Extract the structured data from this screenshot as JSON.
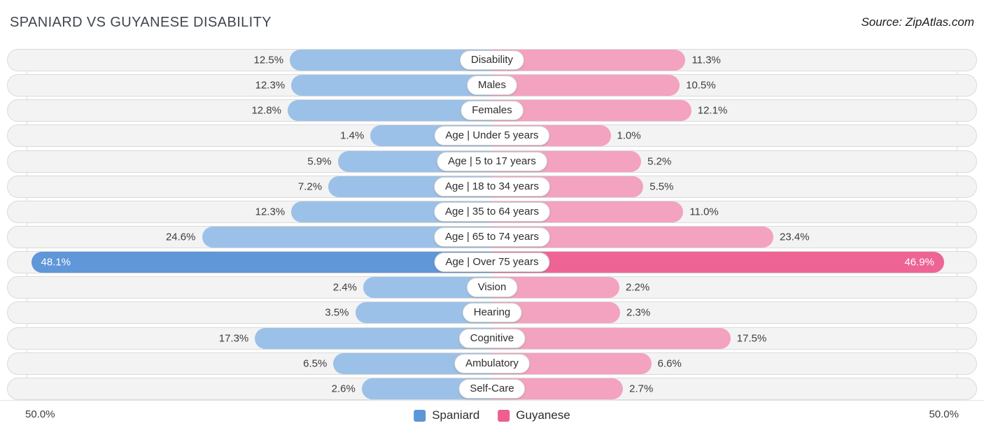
{
  "title": "SPANIARD VS GUYANESE DISABILITY",
  "source": "Source: ZipAtlas.com",
  "colors": {
    "spaniard": "#9cc1e8",
    "spaniard_strong": "#5f97d8",
    "guyanese": "#f3a2c0",
    "guyanese_strong": "#ee6495",
    "legend_spaniard": "#5b96d6",
    "legend_guyanese": "#ee5e90",
    "track": "#f3f3f4"
  },
  "axis": {
    "left_label": "50.0%",
    "right_label": "50.0%",
    "max_percent": 50
  },
  "legend": [
    {
      "label": "Spaniard"
    },
    {
      "label": "Guyanese"
    }
  ],
  "rows": [
    {
      "label": "Disability",
      "left": "12.5%",
      "right": "11.3%"
    },
    {
      "label": "Males",
      "left": "12.3%",
      "right": "10.5%"
    },
    {
      "label": "Females",
      "left": "12.8%",
      "right": "12.1%"
    },
    {
      "label": "Age | Under 5 years",
      "left": "1.4%",
      "right": "1.0%"
    },
    {
      "label": "Age | 5 to 17 years",
      "left": "5.9%",
      "right": "5.2%"
    },
    {
      "label": "Age | 18 to 34 years",
      "left": "7.2%",
      "right": "5.5%"
    },
    {
      "label": "Age | 35 to 64 years",
      "left": "12.3%",
      "right": "11.0%"
    },
    {
      "label": "Age | 65 to 74 years",
      "left": "24.6%",
      "right": "23.4%"
    },
    {
      "label": "Age | Over 75 years",
      "left": "48.1%",
      "right": "46.9%"
    },
    {
      "label": "Vision",
      "left": "2.4%",
      "right": "2.2%"
    },
    {
      "label": "Hearing",
      "left": "3.5%",
      "right": "2.3%"
    },
    {
      "label": "Cognitive",
      "left": "17.3%",
      "right": "17.5%"
    },
    {
      "label": "Ambulatory",
      "left": "6.5%",
      "right": "6.6%"
    },
    {
      "label": "Self-Care",
      "left": "2.6%",
      "right": "2.7%"
    }
  ],
  "chart_data": {
    "type": "bar",
    "orientation": "horizontal-diverging",
    "title": "SPANIARD VS GUYANESE DISABILITY",
    "categories": [
      "Disability",
      "Males",
      "Females",
      "Age | Under 5 years",
      "Age | 5 to 17 years",
      "Age | 18 to 34 years",
      "Age | 35 to 64 years",
      "Age | 65 to 74 years",
      "Age | Over 75 years",
      "Vision",
      "Hearing",
      "Cognitive",
      "Ambulatory",
      "Self-Care"
    ],
    "series": [
      {
        "name": "Spaniard",
        "values": [
          12.5,
          12.3,
          12.8,
          1.4,
          5.9,
          7.2,
          12.3,
          24.6,
          48.1,
          2.4,
          3.5,
          17.3,
          6.5,
          2.6
        ]
      },
      {
        "name": "Guyanese",
        "values": [
          11.3,
          10.5,
          12.1,
          1.0,
          5.2,
          5.5,
          11.0,
          23.4,
          46.9,
          2.2,
          2.3,
          17.5,
          6.6,
          2.7
        ]
      }
    ],
    "emphasized_index": 8,
    "xlim": [
      -50,
      50
    ],
    "unit": "%",
    "legend_position": "bottom-center",
    "axis_end_labels": [
      "50.0%",
      "50.0%"
    ]
  }
}
